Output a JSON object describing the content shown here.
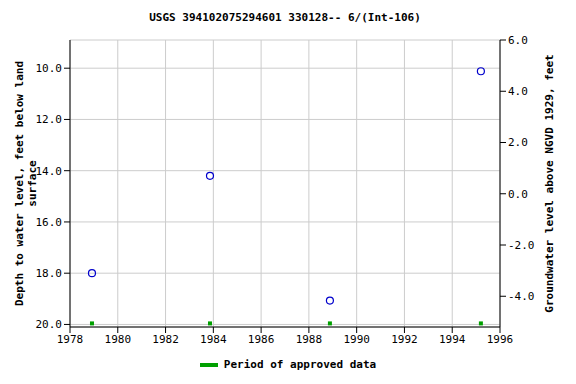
{
  "chart_data": {
    "type": "scatter",
    "title": "USGS 394102075294601 330128-- 6/(Int-106)",
    "x_label": "",
    "y_label": "Depth to water level, feet below land\nsurface",
    "y2_label": "Groundwater level above NGVD 1929, feet",
    "xlim": [
      1978,
      1996
    ],
    "xticks": [
      1978,
      1980,
      1982,
      1984,
      1986,
      1988,
      1990,
      1992,
      1994,
      1996
    ],
    "ylim": [
      8.9,
      20.1
    ],
    "yticks": [
      {
        "value": 10,
        "label": "10.0"
      },
      {
        "value": 12,
        "label": "12.0"
      },
      {
        "value": 14,
        "label": "14.0"
      },
      {
        "value": 16,
        "label": "16.0"
      },
      {
        "value": 18,
        "label": "18.0"
      },
      {
        "value": 20,
        "label": "20.0"
      }
    ],
    "y2lim": [
      -5.2,
      6.0
    ],
    "y2ticks": [
      {
        "value": -4,
        "label": "-4.0"
      },
      {
        "value": -2,
        "label": "-2.0"
      },
      {
        "value": 0,
        "label": "0.0"
      },
      {
        "value": 2,
        "label": "2.0"
      },
      {
        "value": 4,
        "label": "4.0"
      },
      {
        "value": 6,
        "label": "6.0"
      }
    ],
    "grid": true,
    "legend": "bottom",
    "series": [
      {
        "color": "#0000cc",
        "marker": "circle",
        "x": [
          1978.92,
          1983.86,
          1988.88,
          1995.2
        ],
        "values": [
          18.0,
          14.2,
          19.07,
          10.12
        ]
      },
      {
        "name": "Period of approved data",
        "color": "#00a000",
        "marker": "square",
        "x": [
          1978.92,
          1983.86,
          1988.88,
          1995.2
        ],
        "values": [
          19.96,
          19.96,
          19.96,
          19.96
        ]
      }
    ]
  }
}
